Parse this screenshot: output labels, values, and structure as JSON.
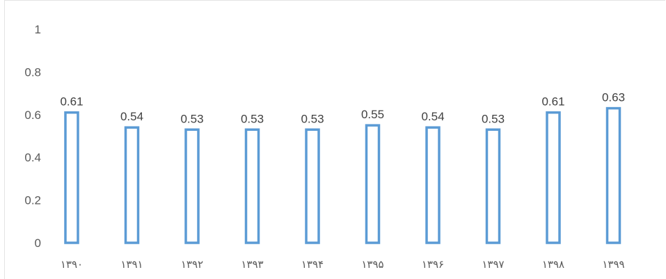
{
  "chart_data": {
    "type": "bar",
    "title": "",
    "xlabel": "",
    "ylabel": "",
    "categories": [
      "۱۳۹۰",
      "۱۳۹۱",
      "۱۳۹۲",
      "۱۳۹۳",
      "۱۳۹۴",
      "۱۳۹۵",
      "۱۳۹۶",
      "۱۳۹۷",
      "۱۳۹۸",
      "۱۳۹۹"
    ],
    "values": [
      0.61,
      0.54,
      0.53,
      0.53,
      0.53,
      0.55,
      0.54,
      0.53,
      0.61,
      0.63
    ],
    "data_labels": [
      "0.61",
      "0.54",
      "0.53",
      "0.53",
      "0.53",
      "0.55",
      "0.54",
      "0.53",
      "0.61",
      "0.63"
    ],
    "ylim": [
      0,
      1
    ],
    "yticks": [
      "0",
      "0.2",
      "0.4",
      "0.6",
      "0.8",
      "1"
    ],
    "grid": false,
    "legend": "none",
    "bar_style": "outline",
    "bar_color": "#5b9bd5"
  }
}
